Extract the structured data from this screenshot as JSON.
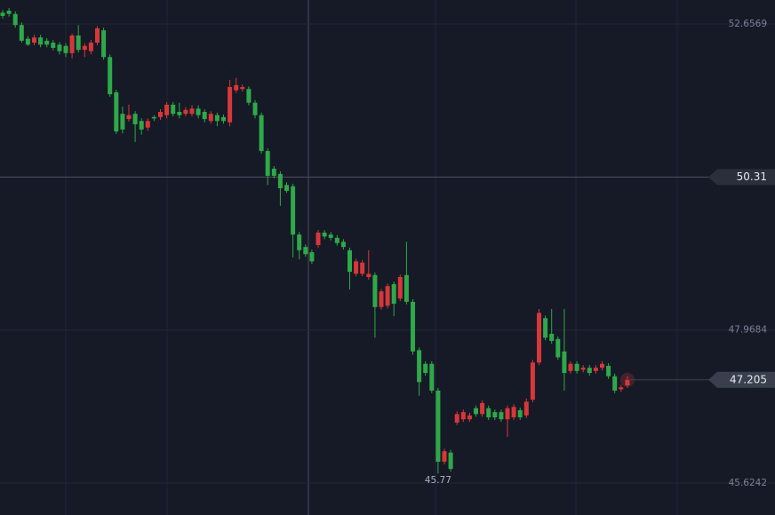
{
  "chart_data": {
    "type": "candlestick",
    "ylim": [
      45.134,
      53.024
    ],
    "yticks": [
      45.6242,
      47.9684,
      50.3127,
      52.6569
    ],
    "grid": true,
    "up_color": "#d8373a",
    "down_color": "#2fa84a",
    "crosshair": {
      "y": 50.31
    },
    "ohlc": [
      [
        52.83,
        52.87,
        52.74,
        52.78
      ],
      [
        52.86,
        52.9,
        52.77,
        52.81
      ],
      [
        52.81,
        52.85,
        52.6,
        52.64
      ],
      [
        52.64,
        52.68,
        52.37,
        52.4
      ],
      [
        52.43,
        52.47,
        52.32,
        52.34
      ],
      [
        52.37,
        52.49,
        52.33,
        52.45
      ],
      [
        52.45,
        52.49,
        52.3,
        52.34
      ],
      [
        52.4,
        52.44,
        52.3,
        52.34
      ],
      [
        52.37,
        52.41,
        52.25,
        52.29
      ],
      [
        52.34,
        52.38,
        52.19,
        52.24
      ],
      [
        52.32,
        52.36,
        52.15,
        52.21
      ],
      [
        52.21,
        52.51,
        52.13,
        52.48
      ],
      [
        52.48,
        52.64,
        52.22,
        52.26
      ],
      [
        52.26,
        52.36,
        52.15,
        52.32
      ],
      [
        52.24,
        52.41,
        52.19,
        52.37
      ],
      [
        52.37,
        52.62,
        52.33,
        52.59
      ],
      [
        52.56,
        52.6,
        52.11,
        52.15
      ],
      [
        52.15,
        52.19,
        51.54,
        51.58
      ],
      [
        51.61,
        51.65,
        50.97,
        51.01
      ],
      [
        51.28,
        51.39,
        50.98,
        51.04
      ],
      [
        51.2,
        51.42,
        51.16,
        51.26
      ],
      [
        51.28,
        51.32,
        50.85,
        51.12
      ],
      [
        51.17,
        51.21,
        50.96,
        51.04
      ],
      [
        51.07,
        51.21,
        51.02,
        51.17
      ],
      [
        51.23,
        51.26,
        51.17,
        51.21
      ],
      [
        51.23,
        51.35,
        51.19,
        51.31
      ],
      [
        51.26,
        51.46,
        51.21,
        51.42
      ],
      [
        51.42,
        51.46,
        51.24,
        51.28
      ],
      [
        51.31,
        51.45,
        51.21,
        51.26
      ],
      [
        51.28,
        51.38,
        51.24,
        51.34
      ],
      [
        51.28,
        51.41,
        51.24,
        51.36
      ],
      [
        51.36,
        51.41,
        51.21,
        51.26
      ],
      [
        51.31,
        51.35,
        51.15,
        51.2
      ],
      [
        51.17,
        51.32,
        51.13,
        51.28
      ],
      [
        51.26,
        51.3,
        51.09,
        51.17
      ],
      [
        51.23,
        51.27,
        51.13,
        51.17
      ],
      [
        51.15,
        51.8,
        51.09,
        51.69
      ],
      [
        51.64,
        51.83,
        51.6,
        51.72
      ],
      [
        51.66,
        51.73,
        51.62,
        51.69
      ],
      [
        51.66,
        51.7,
        51.41,
        51.45
      ],
      [
        51.45,
        51.49,
        51.21,
        51.26
      ],
      [
        51.26,
        51.3,
        50.67,
        50.71
      ],
      [
        50.71,
        50.75,
        50.19,
        50.33
      ],
      [
        50.44,
        50.48,
        50.29,
        50.33
      ],
      [
        50.36,
        50.4,
        49.87,
        50.14
      ],
      [
        50.19,
        50.23,
        50.07,
        50.1
      ],
      [
        50.17,
        50.21,
        49.08,
        49.43
      ],
      [
        49.43,
        49.47,
        49.05,
        49.19
      ],
      [
        49.24,
        49.28,
        49.09,
        49.13
      ],
      [
        49.16,
        49.2,
        48.98,
        49.02
      ],
      [
        49.27,
        49.5,
        49.23,
        49.46
      ],
      [
        49.46,
        49.5,
        49.36,
        49.4
      ],
      [
        49.43,
        49.47,
        49.34,
        49.38
      ],
      [
        49.38,
        49.42,
        49.26,
        49.3
      ],
      [
        49.32,
        49.36,
        49.2,
        49.24
      ],
      [
        49.19,
        49.23,
        48.59,
        48.86
      ],
      [
        48.83,
        49.06,
        48.79,
        49.02
      ],
      [
        48.83,
        49.04,
        48.79,
        49.0
      ],
      [
        48.78,
        49.19,
        48.74,
        48.83
      ],
      [
        48.81,
        48.85,
        47.85,
        48.32
      ],
      [
        48.32,
        48.6,
        48.28,
        48.56
      ],
      [
        48.34,
        48.68,
        48.3,
        48.64
      ],
      [
        48.67,
        48.71,
        48.18,
        48.37
      ],
      [
        48.45,
        48.82,
        48.41,
        48.78
      ],
      [
        48.81,
        49.32,
        48.36,
        48.4
      ],
      [
        48.4,
        48.44,
        47.59,
        47.64
      ],
      [
        47.66,
        47.7,
        46.96,
        47.17
      ],
      [
        47.45,
        47.49,
        47.27,
        47.31
      ],
      [
        47.45,
        47.49,
        47.0,
        47.04
      ],
      [
        47.04,
        47.08,
        45.77,
        45.95
      ],
      [
        45.95,
        46.15,
        45.91,
        46.11
      ],
      [
        46.09,
        46.13,
        45.8,
        45.84
      ],
      [
        46.55,
        46.72,
        46.51,
        46.68
      ],
      [
        46.6,
        46.75,
        46.56,
        46.71
      ],
      [
        46.6,
        46.7,
        46.56,
        46.66
      ],
      [
        46.77,
        46.81,
        46.64,
        46.68
      ],
      [
        46.68,
        46.89,
        46.64,
        46.85
      ],
      [
        46.77,
        46.81,
        46.59,
        46.63
      ],
      [
        46.71,
        46.75,
        46.59,
        46.63
      ],
      [
        46.71,
        46.75,
        46.56,
        46.6
      ],
      [
        46.6,
        46.81,
        46.33,
        46.77
      ],
      [
        46.63,
        46.83,
        46.59,
        46.79
      ],
      [
        46.74,
        46.78,
        46.59,
        46.63
      ],
      [
        46.66,
        46.92,
        46.62,
        46.87
      ],
      [
        46.9,
        47.51,
        46.86,
        47.47
      ],
      [
        47.47,
        48.29,
        47.43,
        48.23
      ],
      [
        48.15,
        48.19,
        47.81,
        47.85
      ],
      [
        47.91,
        48.29,
        47.76,
        47.8
      ],
      [
        47.83,
        47.87,
        47.51,
        47.55
      ],
      [
        47.64,
        48.29,
        47.04,
        47.31
      ],
      [
        47.34,
        47.49,
        47.3,
        47.45
      ],
      [
        47.45,
        47.49,
        47.3,
        47.34
      ],
      [
        47.36,
        47.43,
        47.32,
        47.39
      ],
      [
        47.39,
        47.43,
        47.27,
        47.31
      ],
      [
        47.34,
        47.43,
        47.3,
        47.39
      ],
      [
        47.39,
        47.49,
        47.35,
        47.45
      ],
      [
        47.42,
        47.46,
        47.22,
        47.26
      ],
      [
        47.26,
        47.3,
        47.0,
        47.04
      ],
      [
        47.06,
        47.13,
        47.02,
        47.09
      ],
      [
        47.12,
        47.26,
        47.08,
        47.205
      ]
    ]
  }
}
